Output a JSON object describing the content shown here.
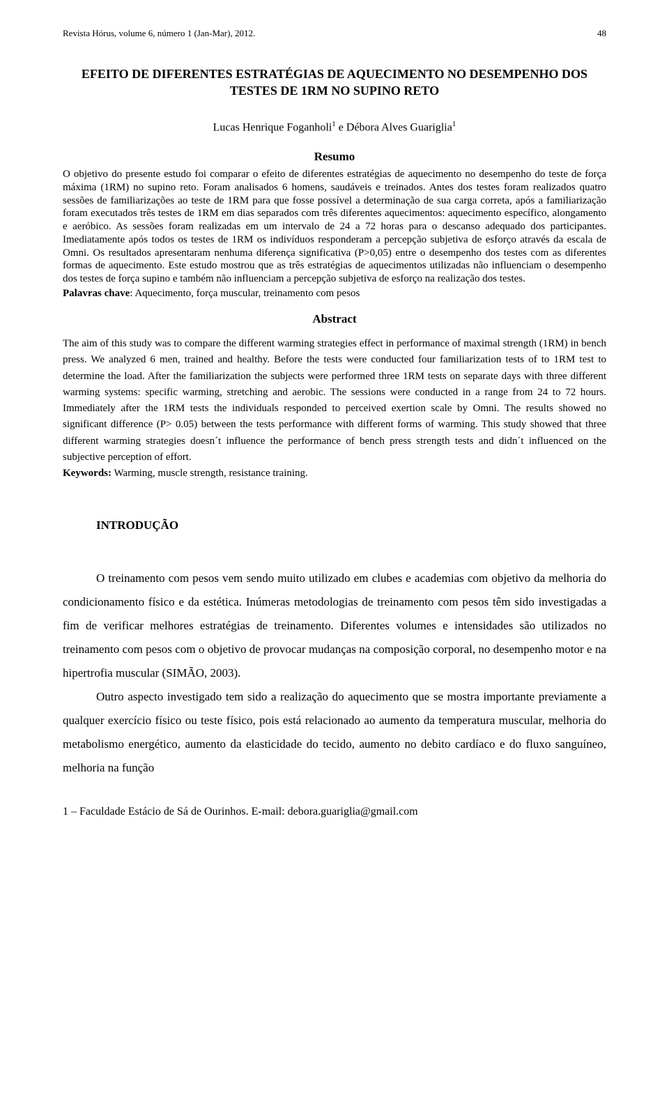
{
  "header": {
    "journal": "Revista Hórus, volume 6, número 1 (Jan-Mar), 2012.",
    "page_number": "48"
  },
  "title": "EFEITO DE  DIFERENTES ESTRATÉGIAS DE AQUECIMENTO NO DESEMPENHO DOS  TESTES DE 1RM NO SUPINO RETO",
  "authors_raw": "Lucas Henrique Foganholi¹ e Débora Alves Guariglia¹",
  "authors": {
    "a1_name": "Lucas Henrique Foganholi",
    "a1_aff": "1",
    "sep": " e ",
    "a2_name": "Débora Alves Guariglia",
    "a2_aff": "1"
  },
  "resumo": {
    "heading": "Resumo",
    "body": "O objetivo do presente estudo foi comparar o efeito de diferentes estratégias de aquecimento no desempenho do teste de força máxima (1RM) no supino reto. Foram analisados 6 homens, saudáveis e treinados. Antes dos testes foram realizados quatro sessões de familiarizações ao teste de 1RM para que fosse possível a determinação de sua carga correta, após a familiarização foram executados três testes de 1RM em dias separados com três diferentes aquecimentos: aquecimento específico, alongamento e aeróbico. As sessões foram realizadas em um intervalo de 24 a 72 horas para o descanso adequado dos participantes. Imediatamente após todos os testes de 1RM os indivíduos responderam a percepção subjetiva de esforço através da escala de Omni. Os resultados apresentaram nenhuma diferença significativa (P>0,05) entre o desempenho dos testes com as diferentes formas de aquecimento. Este estudo mostrou que as três estratégias de aquecimentos utilizadas não influenciam o desempenho dos testes de força supino e também não influenciam a percepção subjetiva de esforço na realização dos testes.",
    "kw_label": "Palavras chave",
    "kw_value": ": Aquecimento, força muscular, treinamento com pesos"
  },
  "abstract": {
    "heading": "Abstract",
    "body": "The aim of this study was to compare the different warming strategies effect in performance of maximal strength (1RM) in bench press. We analyzed 6 men, trained and healthy. Before the tests were conducted four familiarization tests of to 1RM test to determine the load. After the familiarization the subjects were performed three 1RM tests on separate days with three different warming systems: specific warming, stretching and aerobic. The sessions were conducted in a range from 24 to 72 hours. Immediately after the 1RM tests the individuals responded to perceived exertion scale by Omni. The results showed no significant difference (P> 0.05) between the tests performance with different forms of warming. This study showed that three different warming strategies doesn´t influence the performance of bench press strength tests and didn´t influenced on the subjective perception of effort.",
    "kw_label": "Keywords:",
    "kw_value": " Warming, muscle strength, resistance training."
  },
  "intro": {
    "heading": "INTRODUÇÃO",
    "p1": "O treinamento com pesos vem sendo muito utilizado em clubes e academias com objetivo da melhoria do condicionamento físico e da estética. Inúmeras metodologias de treinamento com pesos têm sido investigadas a fim de verificar melhores estratégias de treinamento. Diferentes volumes e intensidades são utilizados no treinamento com pesos com o objetivo de provocar mudanças na composição corporal, no desempenho motor e na hipertrofia muscular (SIMÃO, 2003).",
    "p2": "Outro aspecto investigado tem sido a realização do aquecimento que se mostra importante previamente a qualquer exercício físico ou teste físico, pois está relacionado ao aumento da temperatura muscular, melhoria do metabolismo energético, aumento da elasticidade do tecido, aumento no debito cardíaco e do fluxo sanguíneo, melhoria na função"
  },
  "footer": {
    "note": "1 – Faculdade Estácio de Sá de Ourinhos. E-mail: debora.guariglia@gmail.com"
  }
}
